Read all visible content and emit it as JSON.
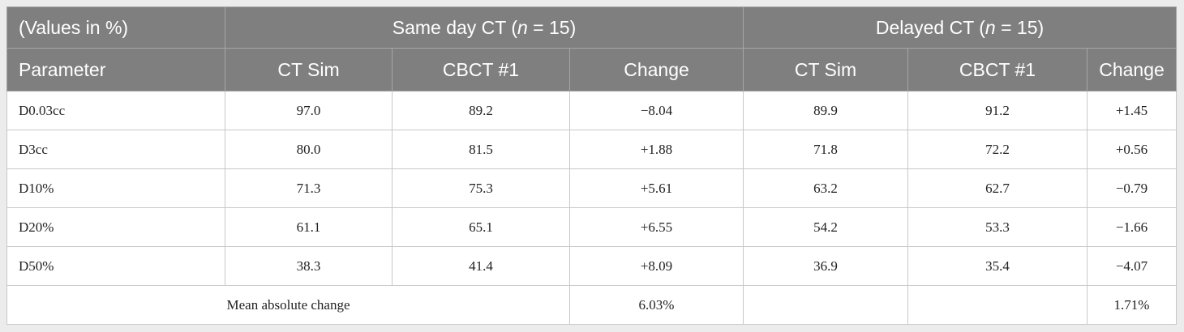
{
  "header": {
    "corner_label": "(Values in %)",
    "groups": [
      {
        "prefix": "Same day CT (",
        "n_symbol": "n",
        "suffix": " = 15)"
      },
      {
        "prefix": "Delayed CT (",
        "n_symbol": "n",
        "suffix": " = 15)"
      }
    ],
    "columns": [
      "Parameter",
      "CT Sim",
      "CBCT #1",
      "Change",
      "CT Sim",
      "CBCT #1",
      "Change"
    ]
  },
  "rows": [
    {
      "parameter": "D0.03cc",
      "same_ct": "97.0",
      "same_cbct": "89.2",
      "same_change": "−8.04",
      "del_ct": "89.9",
      "del_cbct": "91.2",
      "del_change": "+1.45"
    },
    {
      "parameter": "D3cc",
      "same_ct": "80.0",
      "same_cbct": "81.5",
      "same_change": "+1.88",
      "del_ct": "71.8",
      "del_cbct": "72.2",
      "del_change": "+0.56"
    },
    {
      "parameter": "D10%",
      "same_ct": "71.3",
      "same_cbct": "75.3",
      "same_change": "+5.61",
      "del_ct": "63.2",
      "del_cbct": "62.7",
      "del_change": "−0.79"
    },
    {
      "parameter": "D20%",
      "same_ct": "61.1",
      "same_cbct": "65.1",
      "same_change": "+6.55",
      "del_ct": "54.2",
      "del_cbct": "53.3",
      "del_change": "−1.66"
    },
    {
      "parameter": "D50%",
      "same_ct": "38.3",
      "same_cbct": "41.4",
      "same_change": "+8.09",
      "del_ct": "36.9",
      "del_cbct": "35.4",
      "del_change": "−4.07"
    }
  ],
  "summary": {
    "label": "Mean absolute change",
    "same_change": "6.03%",
    "del_change": "1.71%"
  },
  "colors": {
    "header_bg": "#7f7f7f",
    "header_text": "#ffffff",
    "page_bg": "#ececec"
  }
}
